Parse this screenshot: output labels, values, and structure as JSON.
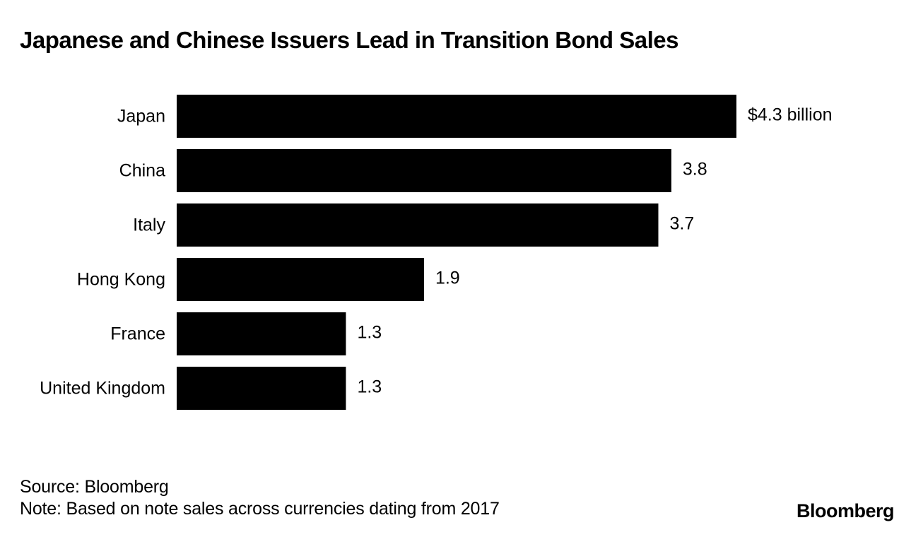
{
  "chart_data": {
    "type": "bar",
    "orientation": "horizontal",
    "title": "Japanese and Chinese Issuers Lead in Transition Bond Sales",
    "categories": [
      "Japan",
      "China",
      "Italy",
      "Hong Kong",
      "France",
      "United Kingdom"
    ],
    "values": [
      4.3,
      3.8,
      3.7,
      1.9,
      1.3,
      1.3
    ],
    "value_labels": [
      "$4.3 billion",
      "3.8",
      "3.7",
      "1.9",
      "1.3",
      "1.3"
    ],
    "unit": "billion USD",
    "xlim": [
      0,
      4.3
    ],
    "grid": false,
    "bar_color": "#000000"
  },
  "footer": {
    "source": "Source: Bloomberg",
    "note": "Note: Based on note sales across currencies dating from 2017",
    "brand": "Bloomberg"
  }
}
